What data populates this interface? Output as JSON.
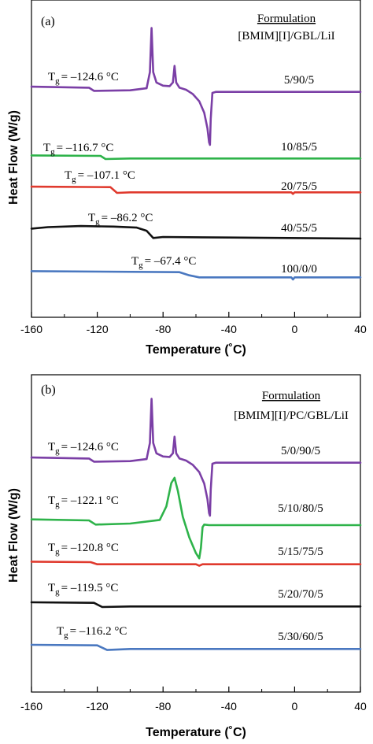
{
  "chart_data": [
    {
      "type": "line",
      "panel_label": "(a)",
      "xlabel": "Temperature (˚C)",
      "ylabel": "Heat Flow (W/g)",
      "xlim": [
        -160,
        40
      ],
      "xticks": [
        "-160",
        "-120",
        "-80",
        "-40",
        "0",
        "40"
      ],
      "legend_title": "Formulation",
      "legend_subtitle": "[BMIM][I]/GBL/LiI",
      "series": [
        {
          "name": "5/90/5",
          "tg_label": "T",
          "tg_sub": "g",
          "tg_value": "= –124.6 °C",
          "color": "#7b3fa6",
          "points": [
            [
              -160,
              1.2
            ],
            [
              -125,
              1.0
            ],
            [
              -122,
              0.4
            ],
            [
              -100,
              0.5
            ],
            [
              -90,
              0.9
            ],
            [
              -88,
              4.0
            ],
            [
              -87,
              12.5
            ],
            [
              -86,
              4.0
            ],
            [
              -84,
              2.0
            ],
            [
              -80,
              1.4
            ],
            [
              -76,
              1.3
            ],
            [
              -74,
              2.0
            ],
            [
              -73,
              5.2
            ],
            [
              -72,
              2.0
            ],
            [
              -70,
              1.0
            ],
            [
              -66,
              0.6
            ],
            [
              -62,
              -0.2
            ],
            [
              -58,
              -1.6
            ],
            [
              -55,
              -3.8
            ],
            [
              -53,
              -6.8
            ],
            [
              -52,
              -9.5
            ],
            [
              -51.5,
              -10.0
            ],
            [
              -51,
              -5.0
            ],
            [
              -50,
              0.0
            ],
            [
              -48,
              0.2
            ],
            [
              40,
              0.2
            ]
          ]
        },
        {
          "name": "10/85/5",
          "tg_label": "T",
          "tg_sub": "g",
          "tg_value": "= –116.7 °C",
          "color": "#2eb34a",
          "points": [
            [
              -160,
              0.4
            ],
            [
              -118,
              0.3
            ],
            [
              -115,
              -0.3
            ],
            [
              -100,
              -0.2
            ],
            [
              40,
              -0.2
            ]
          ]
        },
        {
          "name": "20/75/5",
          "tg_label": "T",
          "tg_sub": "g",
          "tg_value": "= –107.1 °C",
          "color": "#e03a2e",
          "points": [
            [
              -160,
              0.9
            ],
            [
              -112,
              0.8
            ],
            [
              -108,
              -0.3
            ],
            [
              -100,
              -0.2
            ],
            [
              -2,
              -0.2
            ],
            [
              -1,
              -0.5
            ],
            [
              0,
              -0.2
            ],
            [
              40,
              -0.2
            ]
          ]
        },
        {
          "name": "40/55/5",
          "tg_label": "T",
          "tg_sub": "g",
          "tg_value": "= –86.2 °C",
          "color": "#111111",
          "points": [
            [
              -160,
              1.6
            ],
            [
              -150,
              1.9
            ],
            [
              -130,
              2.1
            ],
            [
              -110,
              2.0
            ],
            [
              -96,
              1.8
            ],
            [
              -90,
              1.2
            ],
            [
              -86,
              -0.2
            ],
            [
              -80,
              0.0
            ],
            [
              -40,
              -0.1
            ],
            [
              40,
              -0.3
            ]
          ]
        },
        {
          "name": "100/0/0",
          "tg_label": "T",
          "tg_sub": "g",
          "tg_value": "= –67.4 °C",
          "color": "#4a78c0",
          "points": [
            [
              -160,
              1.0
            ],
            [
              -70,
              0.8
            ],
            [
              -64,
              0.2
            ],
            [
              -58,
              -0.2
            ],
            [
              -2,
              -0.2
            ],
            [
              -1,
              -0.6
            ],
            [
              0,
              -0.2
            ],
            [
              40,
              -0.2
            ]
          ]
        }
      ]
    },
    {
      "type": "line",
      "panel_label": "(b)",
      "xlabel": "Temperature (˚C)",
      "ylabel": "Heat Flow (W/g)",
      "xlim": [
        -160,
        40
      ],
      "xticks": [
        "-160",
        "-120",
        "-80",
        "-40",
        "0",
        "40"
      ],
      "legend_title": "Formulation",
      "legend_subtitle": "[BMIM][I]/PC/GBL/LiI",
      "series": [
        {
          "name": "5/0/90/5",
          "tg_label": "T",
          "tg_sub": "g",
          "tg_value": "= –124.6 °C",
          "color": "#7b3fa6",
          "points": [
            [
              -160,
              1.2
            ],
            [
              -125,
              1.0
            ],
            [
              -122,
              0.4
            ],
            [
              -100,
              0.5
            ],
            [
              -90,
              0.9
            ],
            [
              -88,
              4.0
            ],
            [
              -87,
              12.5
            ],
            [
              -86,
              4.0
            ],
            [
              -84,
              2.0
            ],
            [
              -80,
              1.4
            ],
            [
              -76,
              1.3
            ],
            [
              -74,
              2.0
            ],
            [
              -73,
              5.2
            ],
            [
              -72,
              2.0
            ],
            [
              -70,
              1.0
            ],
            [
              -66,
              0.6
            ],
            [
              -62,
              -0.2
            ],
            [
              -58,
              -1.6
            ],
            [
              -55,
              -3.8
            ],
            [
              -53,
              -6.8
            ],
            [
              -52,
              -9.5
            ],
            [
              -51.5,
              -10.0
            ],
            [
              -51,
              -5.0
            ],
            [
              -50,
              0.0
            ],
            [
              -48,
              0.2
            ],
            [
              40,
              0.2
            ]
          ]
        },
        {
          "name": "5/10/80/5",
          "tg_label": "T",
          "tg_sub": "g",
          "tg_value": "= –122.1 °C",
          "color": "#2eb34a",
          "points": [
            [
              -160,
              0.5
            ],
            [
              -125,
              0.3
            ],
            [
              -121,
              -0.5
            ],
            [
              -100,
              -0.3
            ],
            [
              -82,
              0.4
            ],
            [
              -78,
              3.0
            ],
            [
              -75,
              7.5
            ],
            [
              -73,
              8.5
            ],
            [
              -71,
              6.0
            ],
            [
              -68,
              1.0
            ],
            [
              -64,
              -3.0
            ],
            [
              -60,
              -6.0
            ],
            [
              -58,
              -7.0
            ],
            [
              -57,
              -5.0
            ],
            [
              -56,
              -1.0
            ],
            [
              -55,
              -0.5
            ],
            [
              -52,
              -0.6
            ],
            [
              -40,
              -0.6
            ],
            [
              40,
              -0.6
            ]
          ]
        },
        {
          "name": "5/15/75/5",
          "tg_label": "T",
          "tg_sub": "g",
          "tg_value": "= –120.8 °C",
          "color": "#e03a2e",
          "points": [
            [
              -160,
              0.4
            ],
            [
              -124,
              0.3
            ],
            [
              -120,
              -0.1
            ],
            [
              -60,
              -0.1
            ],
            [
              -58,
              -0.4
            ],
            [
              -56,
              -0.1
            ],
            [
              40,
              -0.1
            ]
          ]
        },
        {
          "name": "5/20/70/5",
          "tg_label": "T",
          "tg_sub": "g",
          "tg_value": "= –119.5 °C",
          "color": "#111111",
          "points": [
            [
              -160,
              0.6
            ],
            [
              -122,
              0.5
            ],
            [
              -117,
              -0.3
            ],
            [
              -100,
              -0.2
            ],
            [
              40,
              -0.2
            ]
          ]
        },
        {
          "name": "5/30/60/5",
          "tg_label": "T",
          "tg_sub": "g",
          "tg_value": "= –116.2 °C",
          "color": "#4a78c0",
          "points": [
            [
              -160,
              0.6
            ],
            [
              -120,
              0.5
            ],
            [
              -114,
              -0.4
            ],
            [
              -100,
              -0.2
            ],
            [
              40,
              -0.2
            ]
          ]
        }
      ]
    }
  ]
}
